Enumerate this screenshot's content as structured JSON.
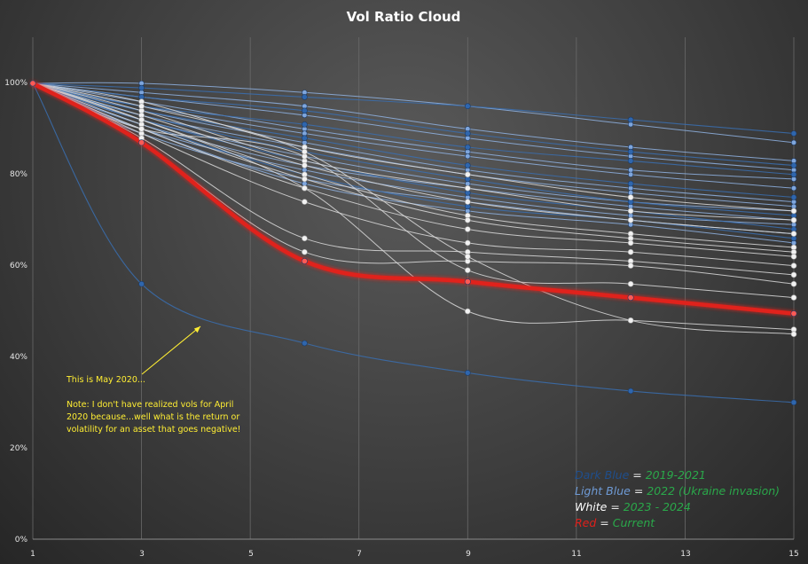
{
  "chart_data": {
    "type": "line",
    "title": "Vol Ratio Cloud",
    "x": [
      1,
      3,
      6,
      9,
      12,
      15
    ],
    "x_ticks": [
      "1",
      "3",
      "5",
      "7",
      "9",
      "11",
      "13",
      "15"
    ],
    "xlim": [
      1,
      15
    ],
    "y_ticks": [
      "0%",
      "20%",
      "40%",
      "60%",
      "80%",
      "100%"
    ],
    "ylim": [
      0,
      100
    ],
    "grid": "vertical",
    "colors": {
      "dark_blue": "#1f4e8c",
      "light_blue": "#6f9bd6",
      "white": "#e8e8e8",
      "red": "#e0201b",
      "legend_value": "#2aa84a",
      "annotation": "#ffee33"
    },
    "series": [
      {
        "name": "Current",
        "group": "red",
        "values": [
          100,
          87,
          61,
          56.5,
          53,
          49.5
        ]
      },
      {
        "name": "May 2020",
        "group": "dark_blue",
        "values": [
          100,
          56,
          43,
          36.5,
          32.5,
          30
        ]
      },
      {
        "name": "db1",
        "group": "dark_blue",
        "values": [
          100,
          99,
          97,
          95,
          92,
          89
        ]
      },
      {
        "name": "db2",
        "group": "dark_blue",
        "values": [
          100,
          97,
          94,
          89,
          85,
          82
        ]
      },
      {
        "name": "db3",
        "group": "dark_blue",
        "values": [
          100,
          95,
          91,
          86,
          83,
          80
        ]
      },
      {
        "name": "db4",
        "group": "dark_blue",
        "values": [
          100,
          94,
          88,
          82,
          78,
          75
        ]
      },
      {
        "name": "db5",
        "group": "dark_blue",
        "values": [
          100,
          93,
          85,
          79,
          74,
          71
        ]
      },
      {
        "name": "db6",
        "group": "dark_blue",
        "values": [
          100,
          92,
          83,
          76,
          72,
          68
        ]
      },
      {
        "name": "db7",
        "group": "dark_blue",
        "values": [
          100,
          91,
          80,
          73,
          70,
          66
        ]
      },
      {
        "name": "lb1",
        "group": "light_blue",
        "values": [
          100,
          100,
          98,
          95,
          91,
          87
        ]
      },
      {
        "name": "lb2",
        "group": "light_blue",
        "values": [
          100,
          98,
          95,
          90,
          86,
          83
        ]
      },
      {
        "name": "lb3",
        "group": "light_blue",
        "values": [
          100,
          97,
          93,
          88,
          84,
          81
        ]
      },
      {
        "name": "lb4",
        "group": "light_blue",
        "values": [
          100,
          96,
          90,
          85,
          81,
          79
        ]
      },
      {
        "name": "lb5",
        "group": "light_blue",
        "values": [
          100,
          95,
          89,
          84,
          80,
          77
        ]
      },
      {
        "name": "lb6",
        "group": "light_blue",
        "values": [
          100,
          94,
          87,
          81,
          77,
          74
        ]
      },
      {
        "name": "lb7",
        "group": "light_blue",
        "values": [
          100,
          93,
          86,
          80,
          76,
          73
        ]
      },
      {
        "name": "lb8",
        "group": "light_blue",
        "values": [
          100,
          92,
          84,
          78,
          74,
          72
        ]
      },
      {
        "name": "lb9",
        "group": "light_blue",
        "values": [
          100,
          91,
          82,
          77,
          73,
          70
        ]
      },
      {
        "name": "lb10",
        "group": "light_blue",
        "values": [
          100,
          90,
          81,
          75,
          71,
          69
        ]
      },
      {
        "name": "lb11",
        "group": "light_blue",
        "values": [
          100,
          89,
          79,
          74,
          70,
          67
        ]
      },
      {
        "name": "lb12",
        "group": "light_blue",
        "values": [
          100,
          90,
          78,
          72,
          69,
          65
        ]
      },
      {
        "name": "w1",
        "group": "white",
        "values": [
          100,
          96,
          86,
          80,
          75,
          72
        ]
      },
      {
        "name": "w2",
        "group": "white",
        "values": [
          100,
          94,
          83,
          77,
          72,
          70
        ]
      },
      {
        "name": "w3",
        "group": "white",
        "values": [
          100,
          93,
          82,
          74,
          70,
          67
        ]
      },
      {
        "name": "w4",
        "group": "white",
        "values": [
          100,
          92,
          80,
          71,
          67,
          64
        ]
      },
      {
        "name": "w5",
        "group": "white",
        "values": [
          100,
          91,
          79,
          70,
          66,
          63
        ]
      },
      {
        "name": "w6",
        "group": "white",
        "values": [
          100,
          90,
          77,
          68,
          65,
          62
        ]
      },
      {
        "name": "w7",
        "group": "white",
        "values": [
          100,
          89,
          74,
          65,
          63,
          60
        ]
      },
      {
        "name": "w8",
        "group": "white",
        "values": [
          100,
          88,
          66,
          63,
          61,
          58
        ]
      },
      {
        "name": "w9",
        "group": "white",
        "values": [
          100,
          87,
          63,
          61,
          60,
          56
        ]
      },
      {
        "name": "w10",
        "group": "white",
        "values": [
          100,
          90,
          84,
          59,
          56,
          53
        ]
      },
      {
        "name": "w11",
        "group": "white",
        "values": [
          100,
          92,
          77,
          50,
          48,
          46
        ]
      },
      {
        "name": "w12",
        "group": "white",
        "values": [
          100,
          95,
          85,
          62,
          48,
          45
        ]
      }
    ],
    "annotation": {
      "line1": "This is May 2020...",
      "line2": "Note: I don't have realized vols for April",
      "line3": "2020 because...well what is the return or",
      "line4": "volatility for an asset that goes negative!"
    },
    "legend": [
      {
        "label": "Dark Blue",
        "value": "2019-2021",
        "group": "dark_blue"
      },
      {
        "label": "Light Blue",
        "value": "2022 (Ukraine invasion)",
        "group": "light_blue"
      },
      {
        "label": "White",
        "value": "2023 - 2024",
        "group": "white"
      },
      {
        "label": "Red",
        "value": "Current",
        "group": "red"
      }
    ]
  }
}
